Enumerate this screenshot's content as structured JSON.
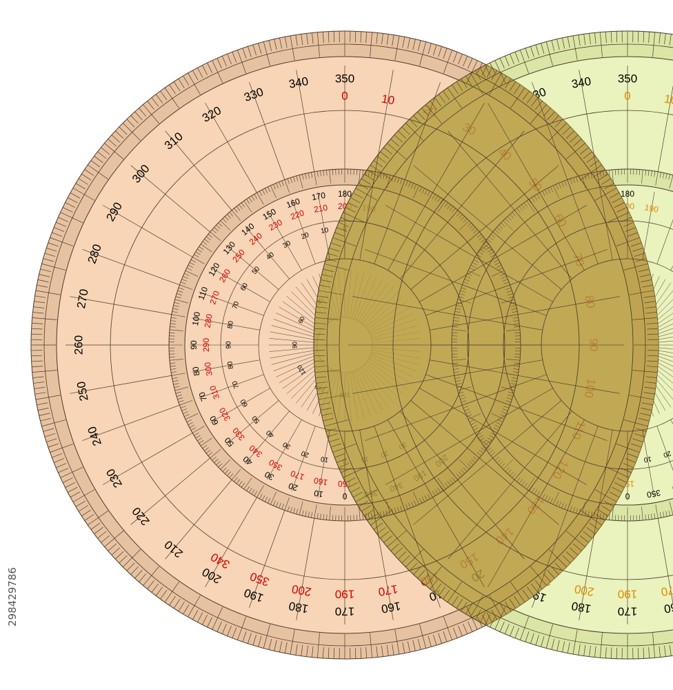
{
  "colors": {
    "left_fill": "#f7d5b6",
    "left_rim": "#e7c2a1",
    "right_fill": "#eaf2bd",
    "right_rim": "#dbe6a6",
    "overlap": "#b59e3f",
    "line": "#4a3a2a",
    "red_label": "#d40000",
    "orange_label": "#e08a00",
    "black_label": "#000000"
  },
  "watermark": {
    "text": "298429786"
  },
  "left_protractor": {
    "outer_black": [
      "350",
      "340",
      "330",
      "320",
      "310",
      "300",
      "290",
      "280",
      "270",
      "260",
      "250",
      "240",
      "230",
      "220",
      "210",
      "200",
      "190",
      "180",
      "170",
      "160",
      "10",
      "20"
    ],
    "outer_red": [
      "0",
      "10",
      "20",
      "30",
      "40",
      "50",
      "60",
      "70",
      "80",
      "90",
      "100",
      "110",
      "120",
      "130",
      "140",
      "150",
      "160",
      "170",
      "190",
      "200",
      "350",
      "340"
    ],
    "middle_black": [
      "180",
      "170",
      "160",
      "150",
      "140",
      "130",
      "120",
      "110",
      "100",
      "90",
      "80",
      "70",
      "60",
      "50",
      "40",
      "30",
      "20",
      "10",
      "0",
      "350",
      "340",
      "190",
      "200"
    ],
    "middle_red": [
      "190",
      "200",
      "210",
      "220",
      "230",
      "240",
      "250",
      "260",
      "270",
      "280",
      "290",
      "300",
      "310",
      "320",
      "330",
      "340",
      "350",
      "170",
      "160",
      "150"
    ],
    "inner_a": [
      "0",
      "10",
      "20",
      "30",
      "40",
      "50",
      "60",
      "70",
      "80",
      "90",
      "80",
      "70",
      "60",
      "50",
      "40",
      "30",
      "20",
      "10",
      "0",
      "10",
      "20",
      "30"
    ],
    "inner_b": [
      "30",
      "60",
      "90",
      "120",
      "150",
      "180"
    ]
  },
  "right_protractor": {
    "outer_black": [
      "350",
      "340",
      "330",
      "320",
      "310",
      "300",
      "290",
      "280",
      "270",
      "260",
      "250",
      "240",
      "230",
      "220",
      "210",
      "200",
      "190",
      "180",
      "170",
      "160",
      "10",
      "20"
    ],
    "outer_orange": [
      "0",
      "10",
      "20",
      "30",
      "40",
      "50",
      "60",
      "70",
      "80",
      "90",
      "100",
      "110",
      "120",
      "130",
      "140",
      "150",
      "160",
      "170",
      "190",
      "200",
      "350",
      "340"
    ],
    "middle_black": [
      "180",
      "170",
      "160",
      "150",
      "140",
      "130",
      "120",
      "110",
      "100",
      "90",
      "80",
      "70",
      "60",
      "50",
      "40",
      "30",
      "20",
      "10",
      "0",
      "350",
      "340",
      "190",
      "200"
    ],
    "middle_orange": [
      "190",
      "200",
      "210",
      "220",
      "230",
      "240",
      "250",
      "260",
      "270",
      "280",
      "290",
      "300",
      "310",
      "320",
      "330",
      "340",
      "350",
      "170",
      "160",
      "150"
    ],
    "inner_a": [
      "0",
      "10",
      "20",
      "30",
      "40",
      "50",
      "60",
      "70",
      "80",
      "90",
      "80",
      "70",
      "60",
      "50",
      "40",
      "30",
      "20",
      "10",
      "0",
      "10",
      "20",
      "30"
    ],
    "inner_b": [
      "30",
      "60",
      "90",
      "120",
      "150",
      "180"
    ]
  }
}
